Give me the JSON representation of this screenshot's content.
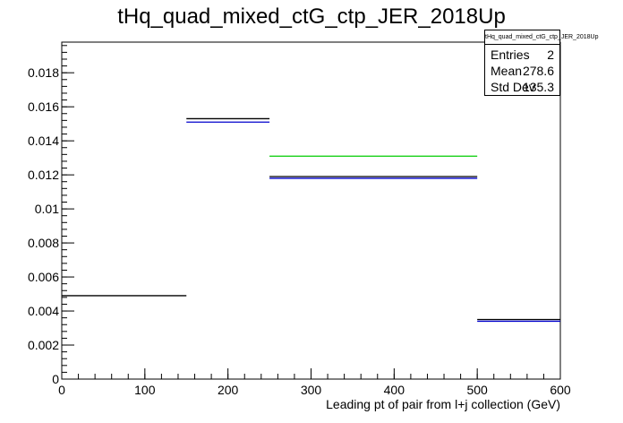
{
  "chart_data": {
    "type": "histogram",
    "title": "tHq_quad_mixed_ctG_ctp_JER_2018Up",
    "xlabel": "Leading pt of pair from l+j collection (GeV)",
    "ylabel": "",
    "xlim": [
      0,
      600
    ],
    "ylim": [
      0,
      0.0198
    ],
    "x_ticks": [
      0,
      100,
      200,
      300,
      400,
      500,
      600
    ],
    "x_tick_labels": [
      "0",
      "100",
      "200",
      "300",
      "400",
      "500",
      "600"
    ],
    "y_ticks": [
      0,
      0.002,
      0.004,
      0.006,
      0.008,
      0.01,
      0.012,
      0.014,
      0.016,
      0.018
    ],
    "y_tick_labels": [
      "0",
      "0.002",
      "0.004",
      "0.006",
      "0.008",
      "0.01",
      "0.012",
      "0.014",
      "0.016",
      "0.018"
    ],
    "series": [
      {
        "color": "#000000",
        "bins": [
          {
            "x0": 0,
            "x1": 150,
            "y": 0.0049
          },
          {
            "x0": 150,
            "x1": 250,
            "y": 0.0153
          },
          {
            "x0": 250,
            "x1": 500,
            "y": 0.0119
          },
          {
            "x0": 500,
            "x1": 600,
            "y": 0.0035
          }
        ]
      },
      {
        "color": "#0000cc",
        "bins": [
          {
            "x0": 150,
            "x1": 250,
            "y": 0.0151
          },
          {
            "x0": 250,
            "x1": 500,
            "y": 0.0118
          },
          {
            "x0": 500,
            "x1": 600,
            "y": 0.0034
          }
        ]
      },
      {
        "color": "#00cc00",
        "bins": [
          {
            "x0": 250,
            "x1": 500,
            "y": 0.0131
          }
        ]
      }
    ],
    "stats": {
      "title": "tHq_quad_mixed_ctG_ctp_JER_2018Up",
      "entries_label": "Entries",
      "entries": "2",
      "mean_label": "Mean",
      "mean": "278.6",
      "stddev_label": "Std Dev",
      "stddev": "135.3"
    }
  }
}
